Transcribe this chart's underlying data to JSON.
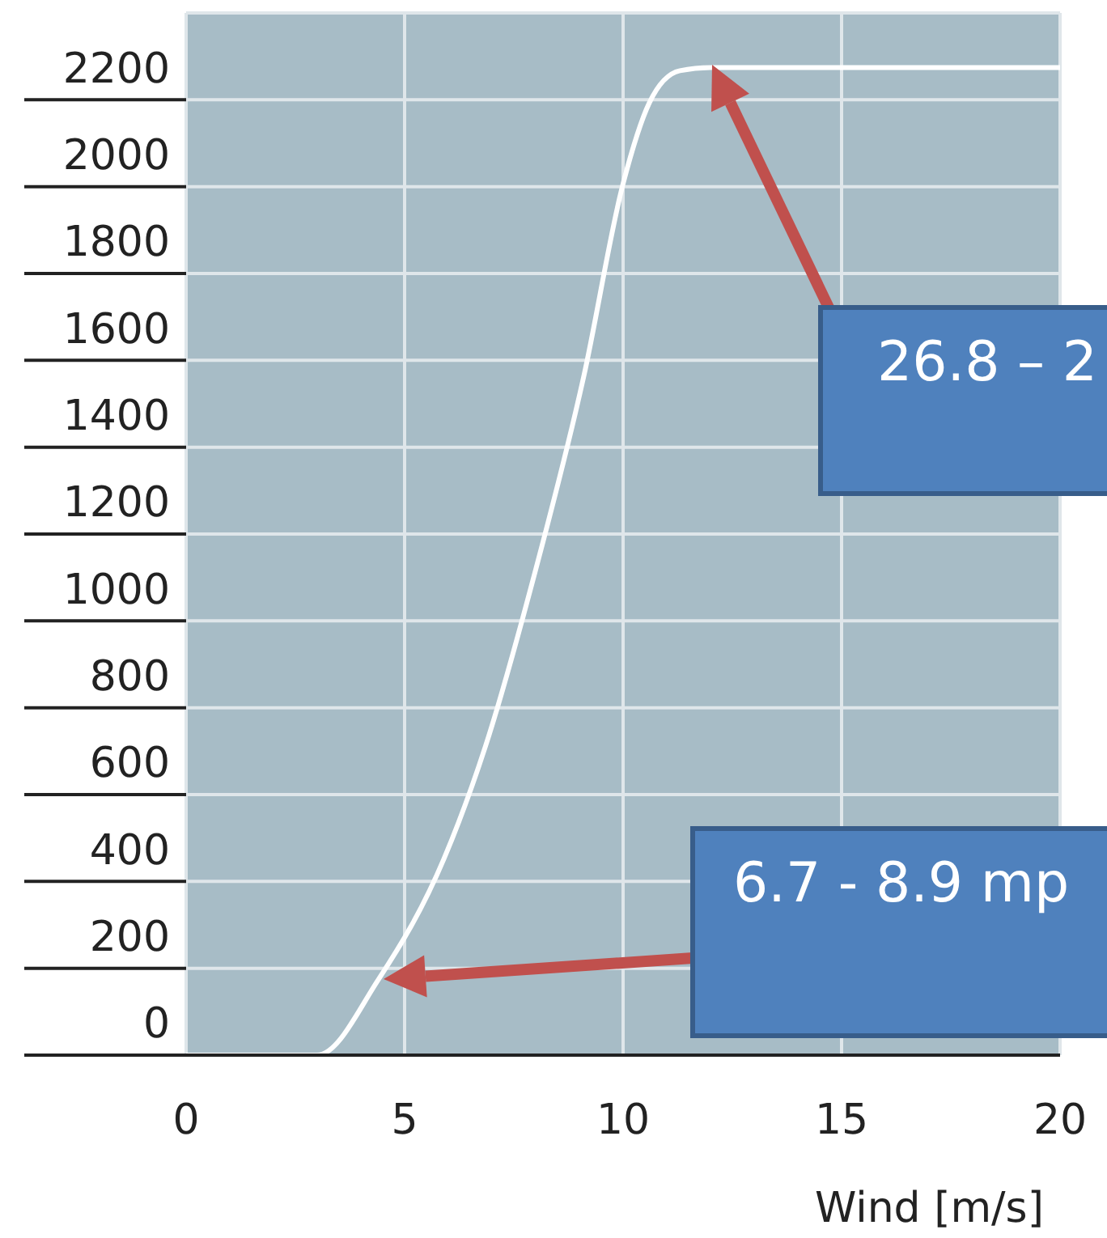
{
  "chart_data": {
    "type": "line",
    "xlabel": "Wind [m/s]",
    "x": [
      0,
      3,
      4.4,
      5.9,
      6.85,
      8,
      9.1,
      10,
      10.6,
      11.3,
      12,
      20
    ],
    "series": [
      {
        "color": "#ffffff",
        "values": [
          0,
          0,
          174,
          452,
          711,
          1118,
          1563,
          2007,
          2193,
          2267,
          2274,
          2274
        ]
      }
    ],
    "xlim": [
      0,
      20
    ],
    "xticks": [
      0,
      5,
      10,
      15,
      20
    ],
    "ylim": [
      0,
      2400
    ],
    "yticks": [
      0,
      200,
      400,
      600,
      800,
      1000,
      1200,
      1400,
      1600,
      1800,
      2000,
      2200
    ],
    "grid": true,
    "legend": false,
    "marker": "none",
    "line_style": "solid",
    "annotations": [
      "26.8 – 2",
      "6.7 - 8.9 mp"
    ]
  }
}
